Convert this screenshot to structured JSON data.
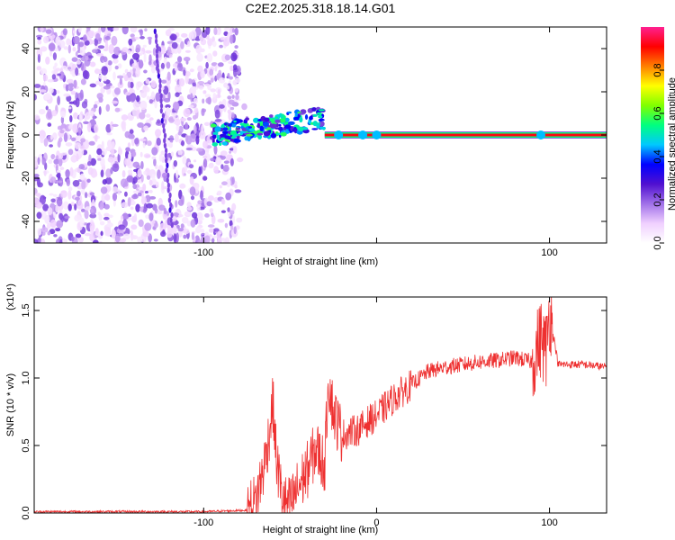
{
  "title": "C2E2.2025.318.18.14.G01",
  "chart_data": [
    {
      "type": "heatmap",
      "name": "spectrogram",
      "xlabel": "Height of straight line (km)",
      "ylabel": "Frequency (Hz)",
      "xlim": [
        -198,
        133
      ],
      "ylim": [
        -50,
        50
      ],
      "xticks": [
        -100,
        0,
        100
      ],
      "xtick_labels": [
        "-100",
        "",
        "100"
      ],
      "yticks": [
        -40,
        -20,
        0,
        20,
        40
      ],
      "ytick_labels": [
        "-40",
        "-20",
        "0",
        "20",
        "40"
      ],
      "colorbar": {
        "label": "Normalized spectral amplitude",
        "range": [
          0,
          1
        ],
        "ticks": [
          0.0,
          0.2,
          0.4,
          0.6,
          0.8
        ],
        "tick_labels": [
          "0.0",
          "0.2",
          "0.4",
          "0.6",
          "0.8"
        ],
        "colormap": [
          "#ffffff",
          "#f0d0ff",
          "#a070e8",
          "#5010d0",
          "#0000ff",
          "#00c8ff",
          "#00ff80",
          "#80ff00",
          "#ffff00",
          "#ff8000",
          "#ff0000",
          "#ff2090"
        ]
      },
      "regions": {
        "noise_band_x": [
          -198,
          -80
        ],
        "transition_x": [
          -95,
          -30
        ],
        "carrier_line": {
          "frequency_hz": 0,
          "x_range": [
            -30,
            133
          ],
          "amplitude": 1.0
        }
      }
    },
    {
      "type": "line",
      "name": "snr",
      "xlabel": "Height of straight line (km)",
      "ylabel": "SNR (10 * v/v)",
      "scale_label": "(x10⁴)",
      "xlim": [
        -198,
        133
      ],
      "ylim": [
        0,
        1.6
      ],
      "xticks": [
        -100,
        0,
        100
      ],
      "xtick_labels": [
        "-100",
        "0",
        "100"
      ],
      "yticks": [
        0.0,
        0.5,
        1.0,
        1.5
      ],
      "ytick_labels": [
        "0.0",
        "0.5",
        "1.0",
        "1.5"
      ],
      "color": "#ee3030",
      "series": [
        {
          "name": "SNR",
          "x": [
            -198,
            -150,
            -100,
            -75,
            -70,
            -65,
            -62,
            -60,
            -58,
            -55,
            -52,
            -50,
            -45,
            -40,
            -35,
            -30,
            -28,
            -25,
            -20,
            -15,
            -10,
            -5,
            0,
            10,
            20,
            30,
            40,
            50,
            60,
            70,
            80,
            90,
            95,
            98,
            100,
            105,
            110,
            120,
            133
          ],
          "y": [
            0.01,
            0.01,
            0.01,
            0.02,
            0.08,
            0.35,
            0.6,
            0.82,
            0.4,
            0.15,
            0.05,
            0.06,
            0.2,
            0.32,
            0.48,
            0.35,
            1.0,
            0.75,
            0.58,
            0.6,
            0.62,
            0.68,
            0.72,
            0.85,
            0.95,
            1.05,
            1.08,
            1.1,
            1.12,
            1.13,
            1.15,
            1.12,
            1.3,
            1.2,
            1.5,
            1.1,
            1.1,
            1.1,
            1.08
          ]
        }
      ]
    }
  ]
}
